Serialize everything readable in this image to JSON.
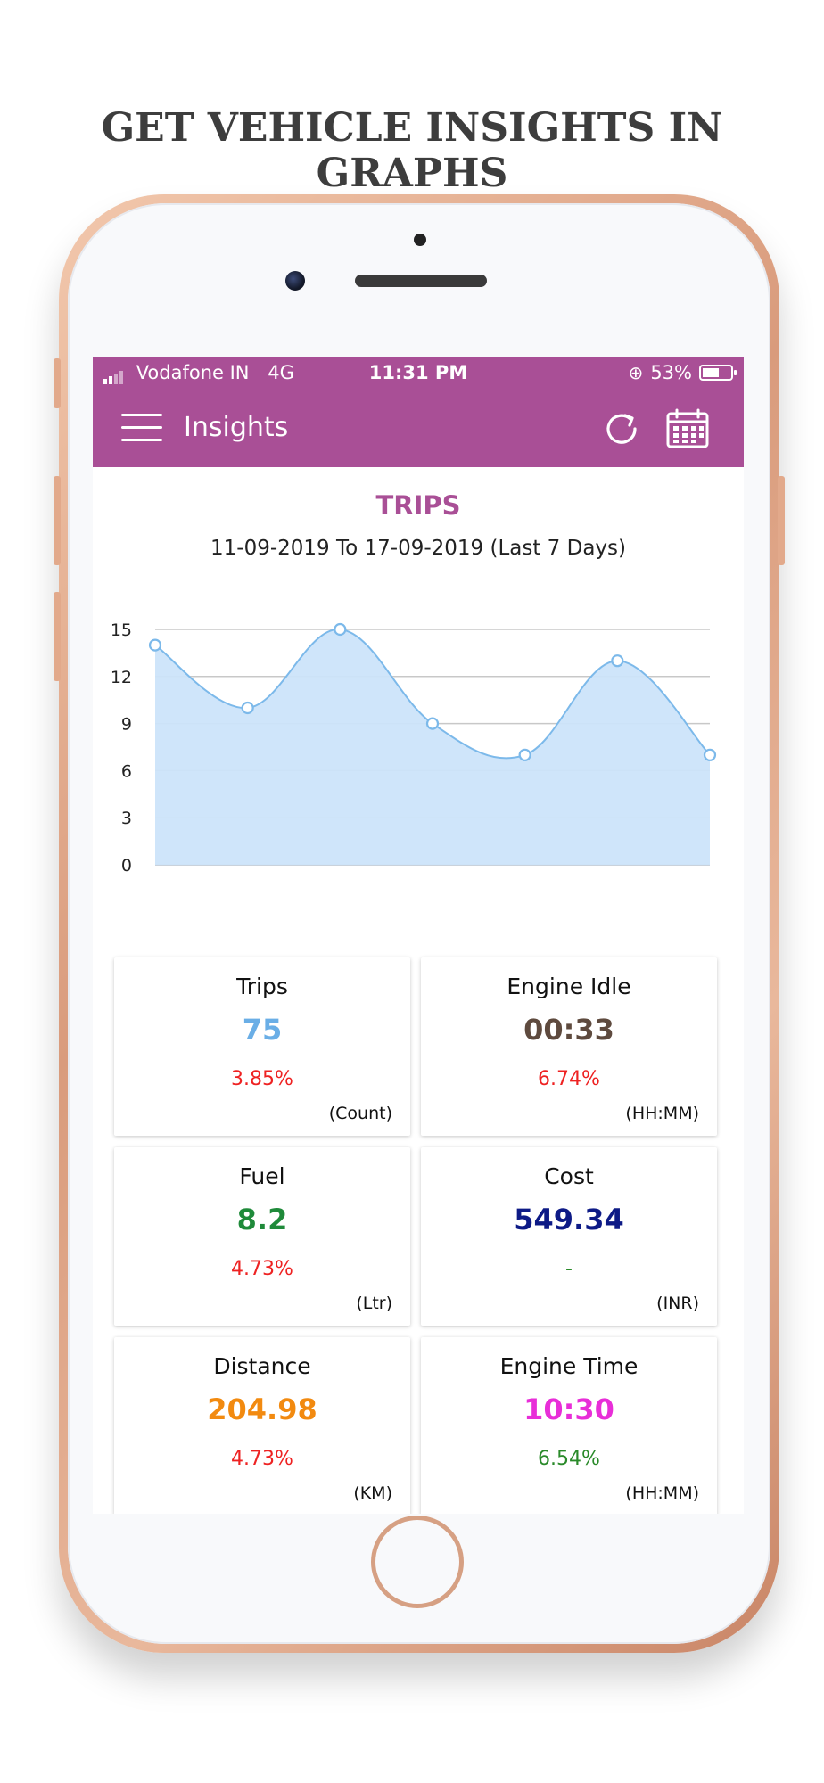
{
  "headline": "GET VEHICLE INSIGHTS IN GRAPHS",
  "status_bar": {
    "carrier": "Vodafone IN",
    "network": "4G",
    "time": "11:31 PM",
    "battery": "53%"
  },
  "app_bar": {
    "title": "Insights",
    "menu_icon": "hamburger-menu-icon",
    "refresh_icon": "refresh-icon",
    "calendar_icon": "calendar-icon",
    "color": "#a94f96"
  },
  "report": {
    "title": "TRIPS",
    "date_range": "11-09-2019 To 17-09-2019 (Last 7 Days)"
  },
  "chart_data": {
    "type": "area",
    "x": [
      1,
      2,
      3,
      4,
      5,
      6,
      7
    ],
    "series": [
      {
        "values": [
          14,
          10,
          15,
          9,
          7,
          13,
          7
        ]
      }
    ],
    "yticks": [
      0,
      3,
      6,
      9,
      12,
      15
    ],
    "ylim": [
      0,
      15
    ],
    "grid": true,
    "line_color": "#7cb9ea",
    "fill_color": "#cce4fa"
  },
  "cards": [
    {
      "label": "Trips",
      "value": "75",
      "change": "3.85%",
      "unit": "(Count)",
      "value_color": "#6aaee6",
      "change_color": "#ee2222"
    },
    {
      "label": "Engine Idle",
      "value": "00:33",
      "change": "6.74%",
      "unit": "(HH:MM)",
      "value_color": "#5e4a3e",
      "change_color": "#ee2222"
    },
    {
      "label": "Fuel",
      "value": "8.2",
      "change": "4.73%",
      "unit": "(Ltr)",
      "value_color": "#1f8a3a",
      "change_color": "#ee2222"
    },
    {
      "label": "Cost",
      "value": "549.34",
      "change": "-",
      "unit": "(INR)",
      "value_color": "#0d1a86",
      "change_color": "#2a8a2a"
    },
    {
      "label": "Distance",
      "value": "204.98",
      "change": "4.73%",
      "unit": "(KM)",
      "value_color": "#f28a10",
      "change_color": "#ee2222"
    },
    {
      "label": "Engine Time",
      "value": "10:30",
      "change": "6.54%",
      "unit": "(HH:MM)",
      "value_color": "#e82ed8",
      "change_color": "#2a8a2a"
    }
  ]
}
